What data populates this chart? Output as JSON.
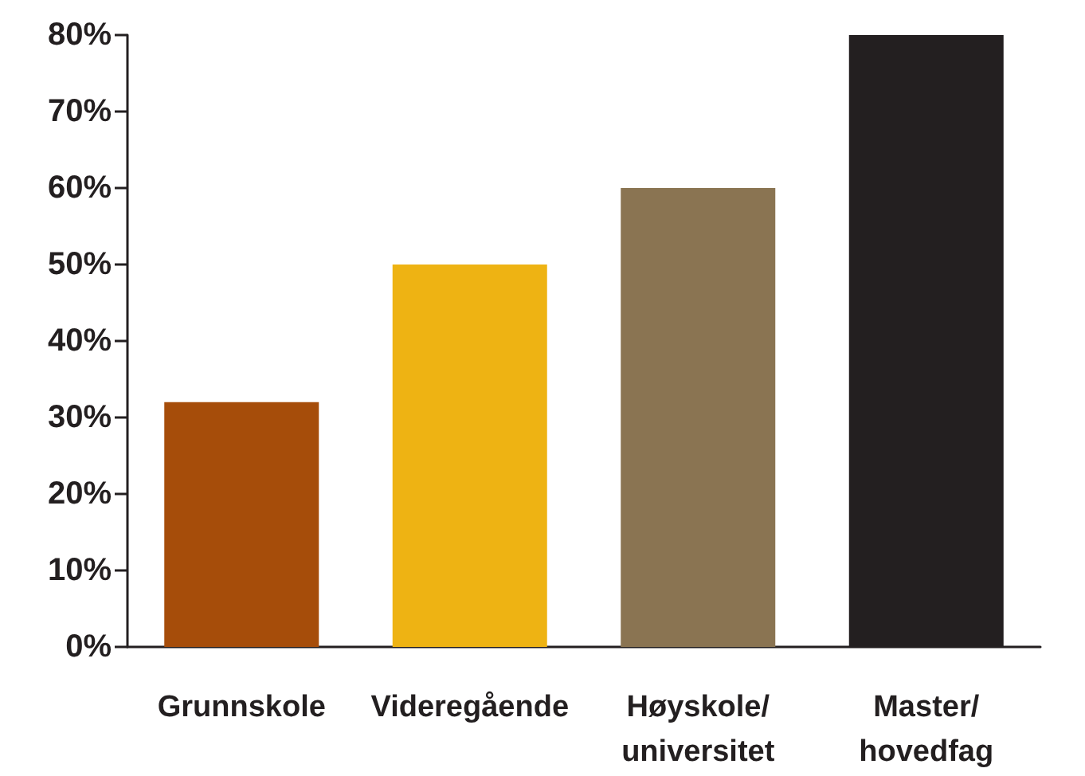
{
  "chart_data": {
    "type": "bar",
    "categories": [
      "Grunnskole",
      "Videregående",
      "Høyskole/\nuniversitet",
      "Master/\nhovedfag"
    ],
    "values": [
      32,
      50,
      60,
      80
    ],
    "colors": [
      "#a64d0a",
      "#eeb313",
      "#8a7452",
      "#231f20"
    ],
    "ylim": [
      0,
      80
    ],
    "yticks": [
      {
        "value": 0,
        "label": "0%"
      },
      {
        "value": 10,
        "label": "10%"
      },
      {
        "value": 20,
        "label": "20%"
      },
      {
        "value": 30,
        "label": "30%"
      },
      {
        "value": 40,
        "label": "40%"
      },
      {
        "value": 50,
        "label": "50%"
      },
      {
        "value": 60,
        "label": "60%"
      },
      {
        "value": 70,
        "label": "70%"
      },
      {
        "value": 80,
        "label": "80%"
      }
    ],
    "grid": false
  }
}
